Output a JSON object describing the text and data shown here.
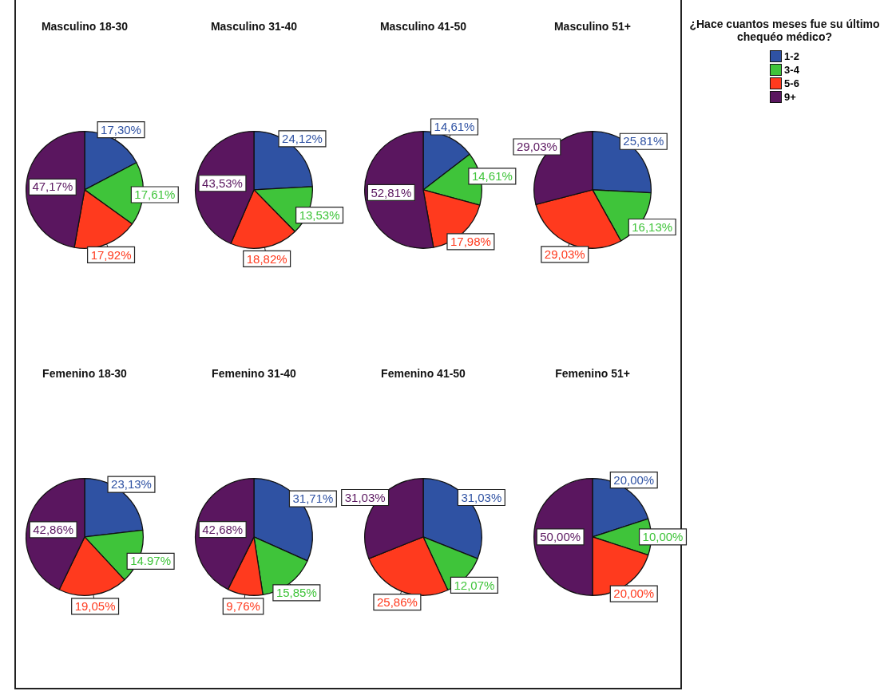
{
  "chart_data": [
    {
      "type": "pie",
      "title": "Masculino 18-30",
      "categories": [
        "1-2",
        "3-4",
        "5-6",
        "9+"
      ],
      "values": [
        17.3,
        17.61,
        17.92,
        47.17
      ],
      "value_labels": [
        "17,30%",
        "17,61%",
        "17,92%",
        "47,17%"
      ],
      "colors": [
        "#2f52a3",
        "#3fc43a",
        "#ff3a1e",
        "#5a165f"
      ],
      "legend": "top right",
      "legend_title": "¿Hace cuantos meses fue su último chequéo médico?"
    },
    {
      "type": "pie",
      "title": "Masculino 31-40",
      "categories": [
        null,
        null,
        null,
        null
      ],
      "values": [
        24.12,
        13.53,
        18.82,
        43.53
      ],
      "value_labels": [
        "24,12%",
        "13,53%",
        "18,82%",
        "43,53%"
      ],
      "colors": [
        "#2f52a3",
        "#3fc43a",
        "#ff3a1e",
        "#5a165f"
      ]
    },
    {
      "type": "pie",
      "title": "Masculino 41-50",
      "categories": [
        null,
        null,
        null,
        null
      ],
      "values": [
        14.61,
        14.61,
        17.98,
        52.81
      ],
      "value_labels": [
        "14,61%",
        "14,61%",
        "17,98%",
        "52,81%"
      ],
      "colors": [
        "#2f52a3",
        "#3fc43a",
        "#ff3a1e",
        "#5a165f"
      ]
    },
    {
      "type": "pie",
      "title": "Masculino 51+",
      "categories": [
        null,
        null,
        null,
        null
      ],
      "values": [
        25.81,
        16.13,
        29.03,
        29.03
      ],
      "value_labels": [
        "25,81%",
        "16,13%",
        "29,03%",
        "29,03%"
      ],
      "colors": [
        "#2f52a3",
        "#3fc43a",
        "#ff3a1e",
        "#5a165f"
      ]
    },
    {
      "type": "pie",
      "title": "Femenino 18-30",
      "categories": [
        null,
        null,
        null,
        null
      ],
      "values": [
        23.13,
        14.97,
        19.05,
        42.86
      ],
      "value_labels": [
        "23,13%",
        "14.97%",
        "19,05%",
        "42,86%"
      ],
      "colors": [
        "#2f52a3",
        "#3fc43a",
        "#ff3a1e",
        "#5a165f"
      ]
    },
    {
      "type": "pie",
      "title": "Femenino 31-40",
      "categories": [
        null,
        null,
        null,
        null
      ],
      "values": [
        31.71,
        15.85,
        9.76,
        42.68
      ],
      "value_labels": [
        "31,71%",
        "15,85%",
        "9,76%",
        "42,68%"
      ],
      "colors": [
        "#2f52a3",
        "#3fc43a",
        "#ff3a1e",
        "#5a165f"
      ]
    },
    {
      "type": "pie",
      "title": "Femenino 41-50",
      "categories": [
        null,
        null,
        null,
        null
      ],
      "values": [
        31.03,
        12.07,
        25.86,
        31.03
      ],
      "value_labels": [
        "31,03%",
        "12,07%",
        "25,86%",
        "31,03%"
      ],
      "colors": [
        "#2f52a3",
        "#3fc43a",
        "#ff3a1e",
        "#5a165f"
      ]
    },
    {
      "type": "pie",
      "title": "Femenino 51+",
      "categories": [
        null,
        null,
        null,
        null
      ],
      "values": [
        20.0,
        10.0,
        20.0,
        50.0
      ],
      "value_labels": [
        "20,00%",
        "10,00%",
        "20,00%",
        "50,00%"
      ],
      "colors": [
        "#2f52a3",
        "#3fc43a",
        "#ff3a1e",
        "#5a165f"
      ]
    }
  ]
}
